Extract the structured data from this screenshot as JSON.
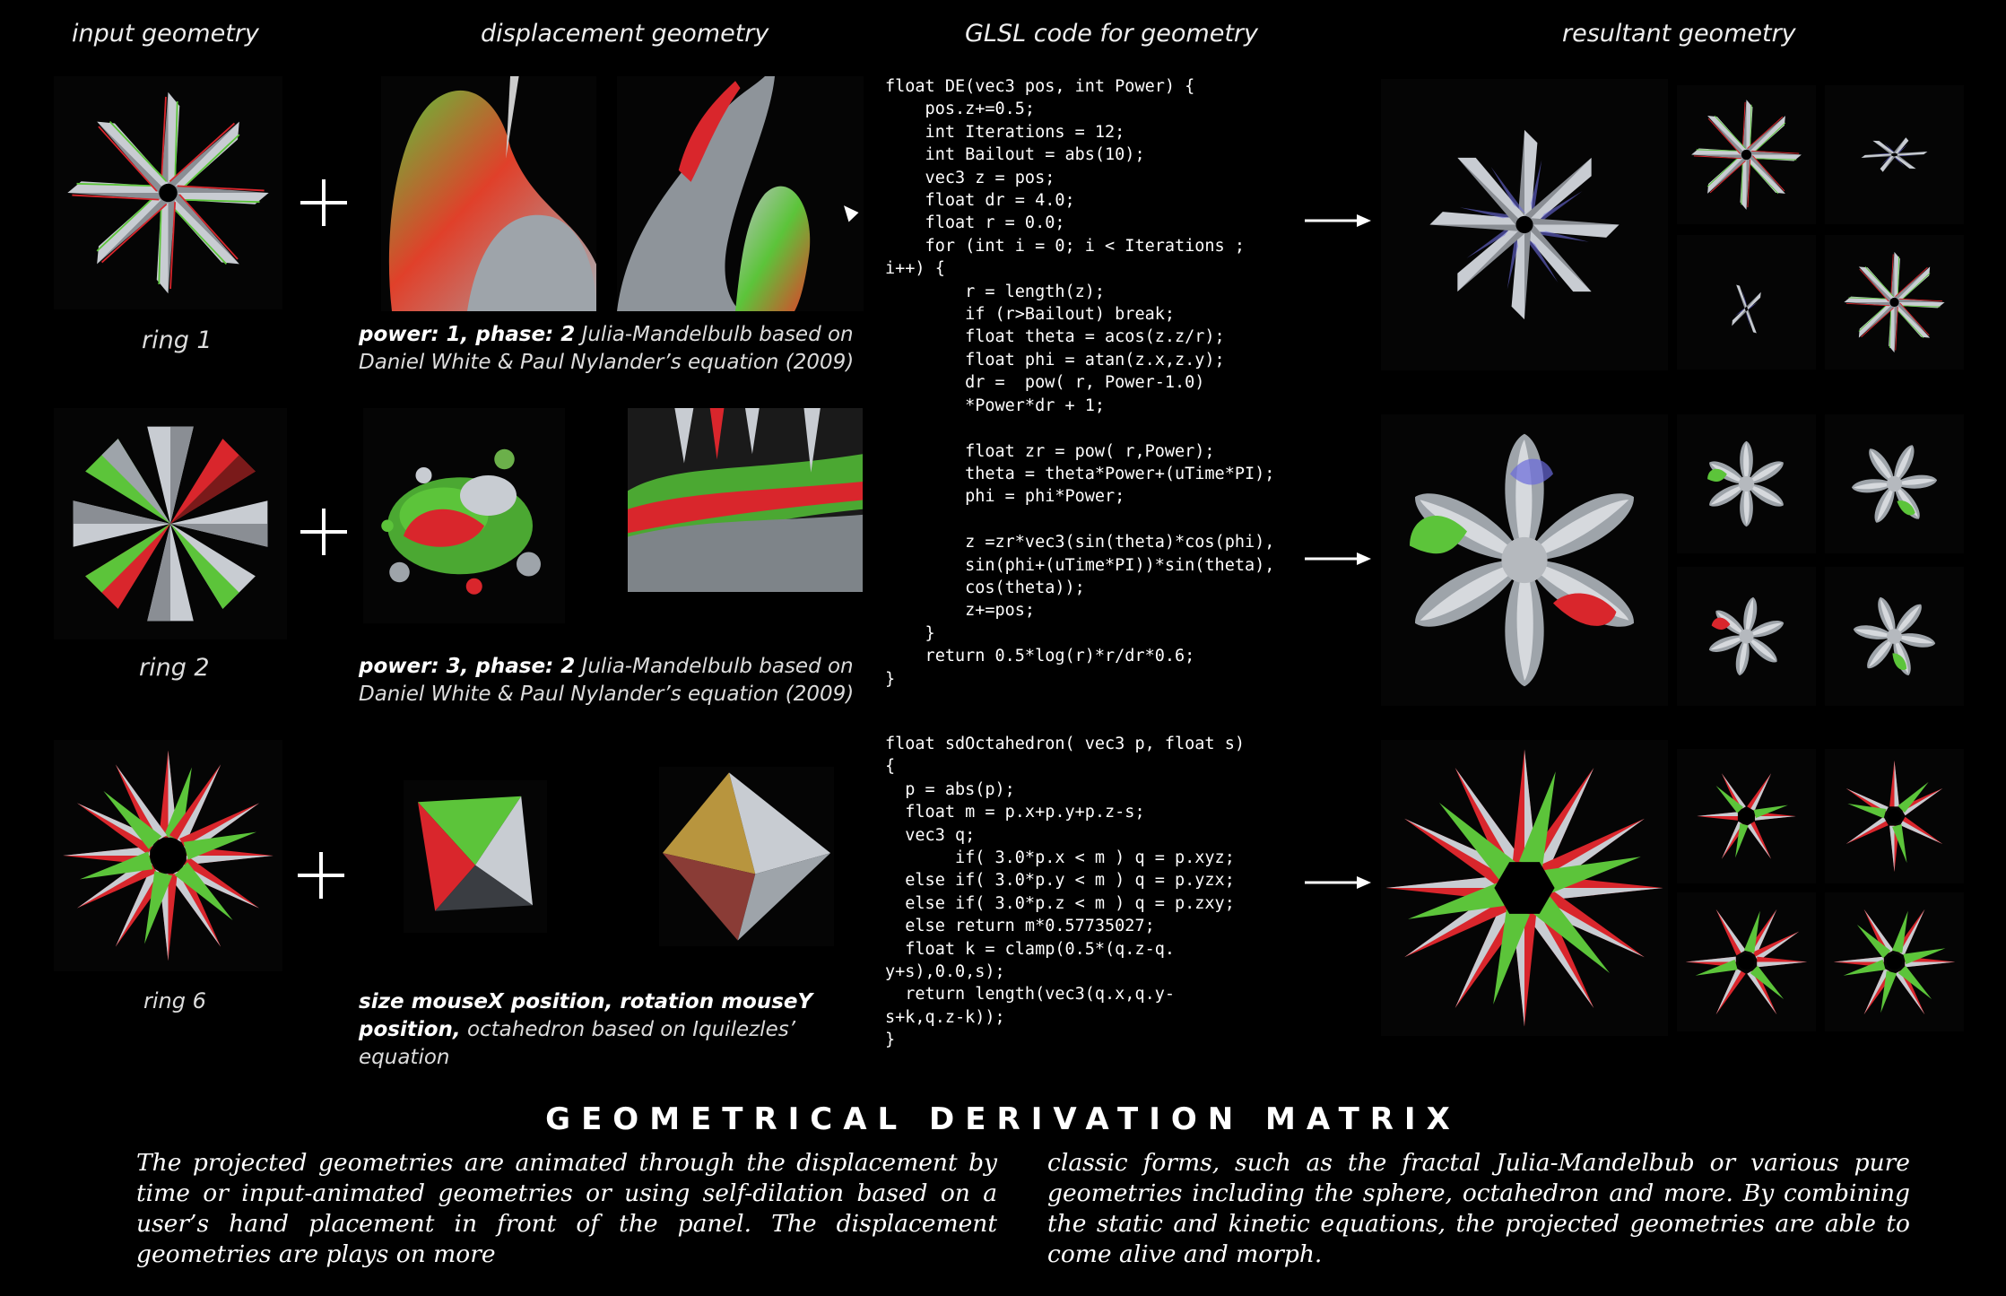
{
  "headers": {
    "input": "input geometry",
    "displacement": "displacement geometry",
    "code": "GLSL code for geometry",
    "result": "resultant geometry"
  },
  "rows": [
    {
      "label": "ring 1",
      "caption_bold": "power: 1, phase: 2",
      "caption_text": " Julia-Mandelbulb based on Daniel White & Paul Nylander’s equation (2009)"
    },
    {
      "label": "ring 2",
      "caption_bold": "power: 3, phase: 2",
      "caption_text": " Julia-Mandelbulb based on Daniel White & Paul Nylander’s equation (2009)"
    },
    {
      "label": "ring 6",
      "caption_bold": "size mouseX position, rotation mouseY position,",
      "caption_text": " octahedron based on Iquilezles’ equation"
    }
  ],
  "code_blocks": [
    "float DE(vec3 pos, int Power) {\n    pos.z+=0.5;\n    int Iterations = 12;\n    int Bailout = abs(10);\n    vec3 z = pos;\n    float dr = 4.0;\n    float r = 0.0;\n    for (int i = 0; i < Iterations ;\ni++) {\n        r = length(z);\n        if (r>Bailout) break;\n        float theta = acos(z.z/r);\n        float phi = atan(z.x,z.y);\n        dr =  pow( r, Power-1.0)\n        *Power*dr + 1;\n\n        float zr = pow( r,Power);\n        theta = theta*Power+(uTime*PI);\n        phi = phi*Power;\n\n        z =zr*vec3(sin(theta)*cos(phi),\n        sin(phi+(uTime*PI))*sin(theta),\n        cos(theta));\n        z+=pos;\n    }\n    return 0.5*log(r)*r/dr*0.6;\n}",
    "float sdOctahedron( vec3 p, float s)\n{\n  p = abs(p);\n  float m = p.x+p.y+p.z-s;\n  vec3 q;\n       if( 3.0*p.x < m ) q = p.xyz;\n  else if( 3.0*p.y < m ) q = p.yzx;\n  else if( 3.0*p.z < m ) q = p.zxy;\n  else return m*0.57735027;\n  float k = clamp(0.5*(q.z-q.\ny+s),0.0,s);\n  return length(vec3(q.x,q.y-\ns+k,q.z-k));\n}"
  ],
  "title": "GEOMETRICAL DERIVATION MATRIX",
  "paragraphs": [
    "The projected geometries are animated through the displacement by time or input-animated geometries or using self-dilation based on a user’s hand placement in front of the panel. The displacement geometries are plays on more",
    "classic forms, such as the fractal Julia-Mandelbub or various pure geometries including the sphere, octahedron and more. By combining the static and kinetic equations, the projected geometries are able to come alive and morph."
  ],
  "colors": {
    "red": "#d9262c",
    "green": "#5cc43a",
    "silver": "#c8ccd2",
    "gold": "#b8953e"
  }
}
